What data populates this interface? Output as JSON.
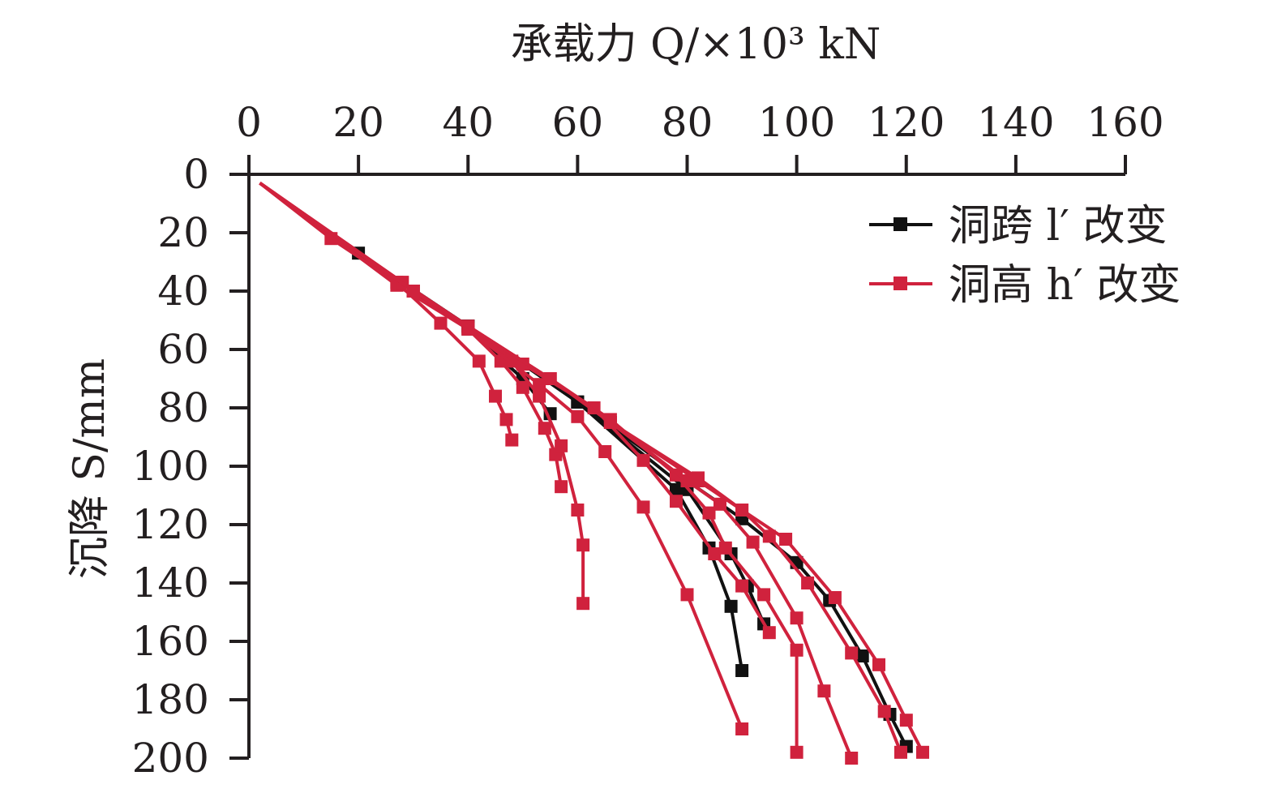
{
  "chart_data": {
    "type": "line",
    "xlabel": "承载力 Q/×10³ kN",
    "ylabel": "沉降 S/mm",
    "xlim": [
      0,
      160
    ],
    "ylim": [
      0,
      200
    ],
    "y_inverted": true,
    "x_axis_position": "top",
    "x_ticks": [
      "0",
      "20",
      "40",
      "60",
      "80",
      "100",
      "120",
      "140",
      "160"
    ],
    "y_ticks": [
      "0",
      "20",
      "40",
      "60",
      "80",
      "100",
      "120",
      "140",
      "160",
      "180",
      "200"
    ],
    "legend": {
      "position": "top-right",
      "entries": [
        {
          "label": "洞跨 l′ 改变",
          "color": "#111111",
          "marker": "square"
        },
        {
          "label": "洞高 h′ 改变",
          "color": "#d0223d",
          "marker": "square"
        }
      ]
    },
    "series": [
      {
        "group": "洞跨 l′ 改变",
        "color": "#111111",
        "points": [
          [
            2,
            3
          ],
          [
            20,
            27
          ],
          [
            30,
            40
          ],
          [
            40,
            53
          ],
          [
            50,
            70
          ],
          [
            55,
            82
          ]
        ]
      },
      {
        "group": "洞跨 l′ 改变",
        "color": "#111111",
        "points": [
          [
            20,
            27
          ],
          [
            40,
            52
          ],
          [
            60,
            78
          ],
          [
            78,
            108
          ],
          [
            84,
            128
          ],
          [
            88,
            148
          ],
          [
            90,
            170
          ]
        ]
      },
      {
        "group": "洞跨 l′ 改变",
        "color": "#111111",
        "points": [
          [
            20,
            27
          ],
          [
            40,
            52
          ],
          [
            60,
            78
          ],
          [
            80,
            108
          ],
          [
            88,
            130
          ],
          [
            91,
            141
          ],
          [
            94,
            154
          ]
        ]
      },
      {
        "group": "洞跨 l′ 改变",
        "color": "#111111",
        "points": [
          [
            20,
            27
          ],
          [
            40,
            52
          ],
          [
            60,
            78
          ],
          [
            80,
            105
          ],
          [
            90,
            118
          ],
          [
            100,
            133
          ],
          [
            106,
            146
          ],
          [
            112,
            165
          ],
          [
            117,
            185
          ],
          [
            120,
            196
          ]
        ]
      },
      {
        "group": "洞高 h′ 改变",
        "color": "#d0223d",
        "points": [
          [
            2,
            3
          ],
          [
            15,
            22
          ],
          [
            27,
            37
          ],
          [
            35,
            51
          ],
          [
            42,
            64
          ],
          [
            45,
            76
          ],
          [
            47,
            84
          ],
          [
            48,
            91
          ]
        ]
      },
      {
        "group": "洞高 h′ 改变",
        "color": "#d0223d",
        "points": [
          [
            2,
            3
          ],
          [
            27,
            38
          ],
          [
            40,
            53
          ],
          [
            46,
            64
          ],
          [
            50,
            73
          ],
          [
            54,
            87
          ],
          [
            56,
            96
          ],
          [
            57,
            107
          ]
        ]
      },
      {
        "group": "洞高 h′ 改变",
        "color": "#d0223d",
        "points": [
          [
            2,
            3
          ],
          [
            28,
            37
          ],
          [
            40,
            52
          ],
          [
            48,
            64
          ],
          [
            53,
            76
          ],
          [
            57,
            93
          ],
          [
            60,
            115
          ],
          [
            61,
            127
          ],
          [
            61,
            147
          ]
        ]
      },
      {
        "group": "洞高 h′ 改变",
        "color": "#d0223d",
        "points": [
          [
            2,
            3
          ],
          [
            28,
            37
          ],
          [
            40,
            53
          ],
          [
            53,
            72
          ],
          [
            60,
            83
          ],
          [
            65,
            95
          ],
          [
            72,
            114
          ],
          [
            80,
            144
          ],
          [
            90,
            190
          ]
        ]
      },
      {
        "group": "洞高 h′ 改变",
        "color": "#d0223d",
        "points": [
          [
            2,
            3
          ],
          [
            30,
            40
          ],
          [
            50,
            65
          ],
          [
            63,
            80
          ],
          [
            72,
            98
          ],
          [
            78,
            112
          ],
          [
            85,
            130
          ],
          [
            90,
            141
          ],
          [
            95,
            157
          ]
        ]
      },
      {
        "group": "洞高 h′ 改变",
        "color": "#d0223d",
        "points": [
          [
            2,
            3
          ],
          [
            30,
            40
          ],
          [
            55,
            70
          ],
          [
            66,
            84
          ],
          [
            78,
            103
          ],
          [
            84,
            116
          ],
          [
            87,
            128
          ],
          [
            94,
            144
          ],
          [
            100,
            163
          ],
          [
            100,
            198
          ]
        ]
      },
      {
        "group": "洞高 h′ 改变",
        "color": "#d0223d",
        "points": [
          [
            2,
            3
          ],
          [
            30,
            40
          ],
          [
            55,
            70
          ],
          [
            66,
            85
          ],
          [
            80,
            105
          ],
          [
            86,
            113
          ],
          [
            92,
            126
          ],
          [
            100,
            152
          ],
          [
            105,
            177
          ],
          [
            110,
            200
          ]
        ]
      },
      {
        "group": "洞高 h′ 改变",
        "color": "#d0223d",
        "points": [
          [
            2,
            3
          ],
          [
            30,
            40
          ],
          [
            55,
            70
          ],
          [
            66,
            85
          ],
          [
            82,
            105
          ],
          [
            90,
            115
          ],
          [
            95,
            124
          ],
          [
            102,
            140
          ],
          [
            110,
            164
          ],
          [
            116,
            184
          ],
          [
            119,
            198
          ]
        ]
      },
      {
        "group": "洞高 h′ 改变",
        "color": "#d0223d",
        "points": [
          [
            2,
            3
          ],
          [
            30,
            40
          ],
          [
            55,
            70
          ],
          [
            66,
            85
          ],
          [
            82,
            104
          ],
          [
            90,
            115
          ],
          [
            98,
            125
          ],
          [
            107,
            145
          ],
          [
            115,
            168
          ],
          [
            120,
            187
          ],
          [
            123,
            198
          ]
        ]
      }
    ]
  }
}
